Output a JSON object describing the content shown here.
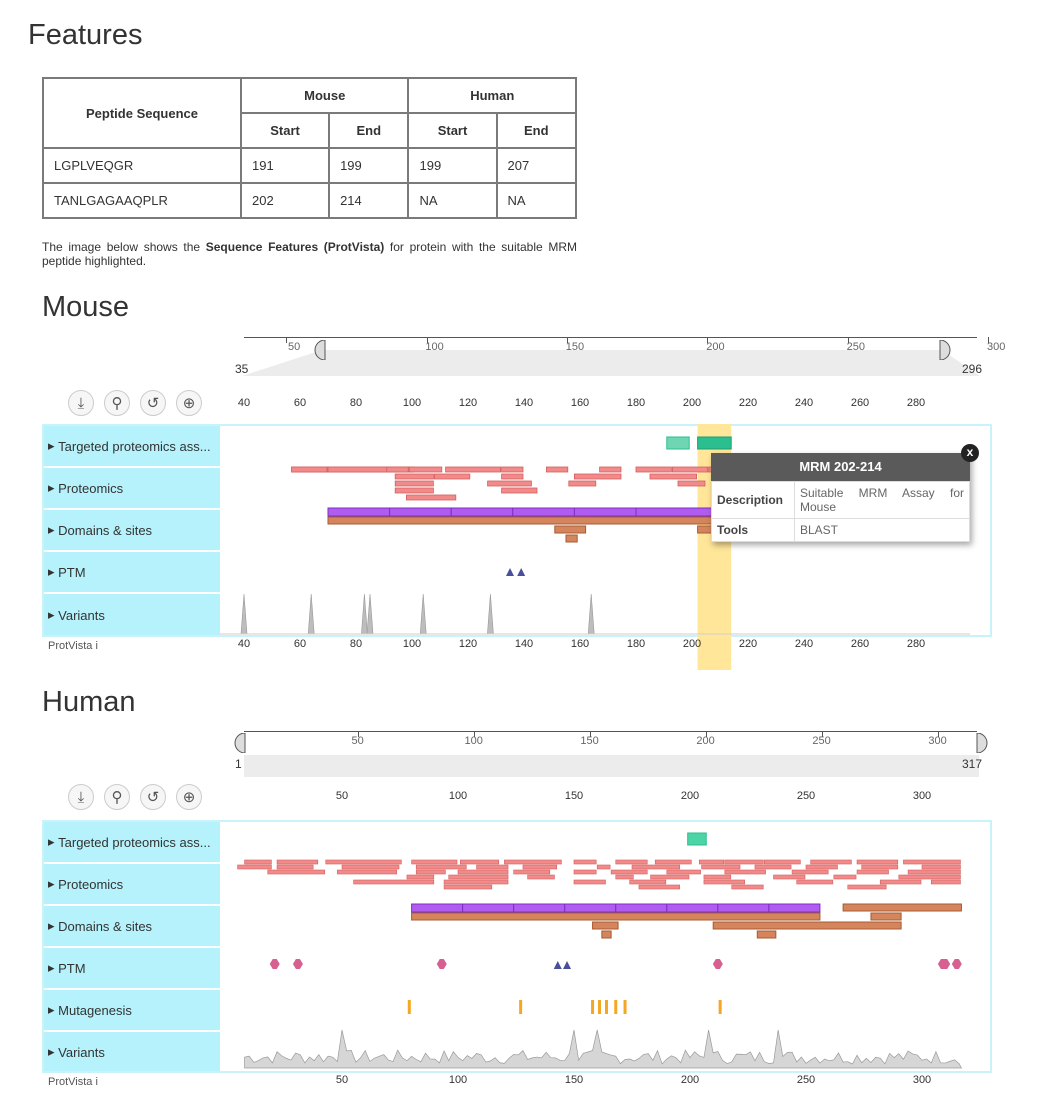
{
  "features": {
    "title": "Features",
    "table": {
      "col_peptide": "Peptide Sequence",
      "col_mouse": "Mouse",
      "col_human": "Human",
      "col_start": "Start",
      "col_end": "End",
      "rows": [
        {
          "peptide": "LGPLVEQGR",
          "mouse_start": "191",
          "mouse_end": "199",
          "human_start": "199",
          "human_end": "207"
        },
        {
          "peptide": "TANLGAGAAQPLR",
          "mouse_start": "202",
          "mouse_end": "214",
          "human_start": "NA",
          "human_end": "NA"
        }
      ]
    },
    "intro_pre": "The image below shows the ",
    "intro_bold": "Sequence Features (ProtVista)",
    "intro_post": " for protein with the suitable MRM peptide highlighted."
  },
  "mouse": {
    "title": "Mouse",
    "range_start": "35",
    "range_end": "296",
    "nav_ticks": [
      "50",
      "100",
      "150",
      "200",
      "250",
      "300"
    ],
    "axis_ticks": [
      "40",
      "60",
      "80",
      "100",
      "120",
      "140",
      "160",
      "180",
      "200",
      "220",
      "240",
      "260",
      "280"
    ],
    "categories": [
      "Targeted proteomics ass...",
      "Proteomics",
      "Domains & sites",
      "PTM",
      "Variants"
    ],
    "brand": "ProtVista",
    "brand_info": "i",
    "tooltip": {
      "title": "MRM 202-214",
      "close": "x",
      "desc_label": "Description",
      "desc_value": "Suitable MRM Assay for Mouse",
      "tools_label": "Tools",
      "tools_value": "BLAST"
    }
  },
  "human": {
    "title": "Human",
    "range_start": "1",
    "range_end": "317",
    "nav_ticks": [
      "50",
      "100",
      "150",
      "200",
      "250",
      "300"
    ],
    "axis_ticks": [
      "50",
      "100",
      "150",
      "200",
      "250",
      "300"
    ],
    "categories": [
      "Targeted proteomics ass...",
      "Proteomics",
      "Domains & sites",
      "PTM",
      "Mutagenesis",
      "Variants"
    ],
    "brand": "ProtVista",
    "brand_info": "i"
  },
  "toolbar": {
    "icons": [
      "download-icon",
      "location-pin-icon",
      "reset-icon",
      "zoom-in-icon"
    ]
  },
  "colors": {
    "track_bg": "#b5f2fb",
    "proteomics": "#f28a8a",
    "domain_purple": "#b05cf0",
    "domain_brown": "#d4855c",
    "highlight": "#ffe699",
    "mrm": "#2bbf8f",
    "ptm_triangle": "#4a4f9a",
    "ptm_circle": "#d6608f",
    "mutagenesis": "#f5a623",
    "variants": "#bdbdbd"
  }
}
